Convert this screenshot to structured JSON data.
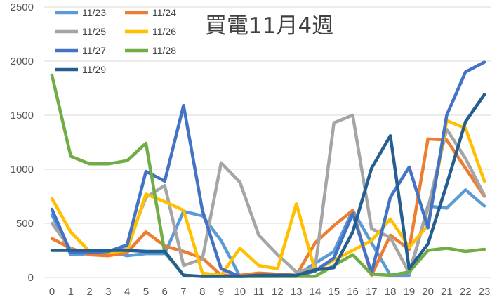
{
  "chart_data": {
    "type": "line",
    "title": "買電11月4週",
    "xlabel": "",
    "ylabel": "",
    "x": [
      0,
      1,
      2,
      3,
      4,
      5,
      6,
      7,
      8,
      9,
      10,
      11,
      12,
      13,
      14,
      15,
      16,
      17,
      18,
      19,
      20,
      21,
      22,
      23
    ],
    "ylim": [
      0,
      2500
    ],
    "yticks": [
      0,
      500,
      1000,
      1500,
      2000,
      2500
    ],
    "grid": true,
    "legend_position": "top-left",
    "series": [
      {
        "name": "11/23",
        "color": "#5B9BD5",
        "values": [
          580,
          210,
          220,
          240,
          200,
          220,
          220,
          610,
          570,
          340,
          10,
          10,
          10,
          20,
          130,
          240,
          620,
          320,
          20,
          20,
          660,
          640,
          810,
          660
        ]
      },
      {
        "name": "11/24",
        "color": "#ED7D31",
        "values": [
          360,
          270,
          210,
          200,
          230,
          420,
          290,
          240,
          180,
          20,
          20,
          40,
          30,
          20,
          320,
          480,
          620,
          20,
          390,
          260,
          1280,
          1270,
          1010,
          750
        ]
      },
      {
        "name": "11/25",
        "color": "#A5A5A5",
        "values": [
          500,
          260,
          230,
          230,
          290,
          740,
          850,
          110,
          170,
          1060,
          880,
          390,
          210,
          50,
          90,
          1430,
          1500,
          450,
          370,
          40,
          640,
          1370,
          1100,
          760
        ]
      },
      {
        "name": "11/26",
        "color": "#FFC000",
        "values": [
          730,
          420,
          240,
          230,
          250,
          770,
          700,
          620,
          40,
          20,
          270,
          110,
          80,
          680,
          60,
          160,
          250,
          340,
          540,
          280,
          480,
          1450,
          1380,
          890
        ]
      },
      {
        "name": "11/27",
        "color": "#4472C4",
        "values": [
          630,
          230,
          230,
          240,
          300,
          980,
          890,
          1590,
          620,
          80,
          10,
          10,
          10,
          10,
          60,
          180,
          590,
          40,
          740,
          1020,
          460,
          1500,
          1900,
          1990
        ]
      },
      {
        "name": "11/28",
        "color": "#70AD47",
        "values": [
          1870,
          1120,
          1050,
          1050,
          1080,
          1240,
          230,
          20,
          10,
          10,
          10,
          10,
          10,
          10,
          10,
          110,
          210,
          30,
          20,
          50,
          250,
          270,
          240,
          260
        ]
      },
      {
        "name": "11/29",
        "color": "#255E91",
        "values": [
          250,
          250,
          250,
          250,
          250,
          240,
          240,
          20,
          10,
          10,
          10,
          20,
          20,
          20,
          70,
          90,
          420,
          1010,
          1310,
          80,
          310,
          860,
          1440,
          1690
        ]
      }
    ]
  }
}
